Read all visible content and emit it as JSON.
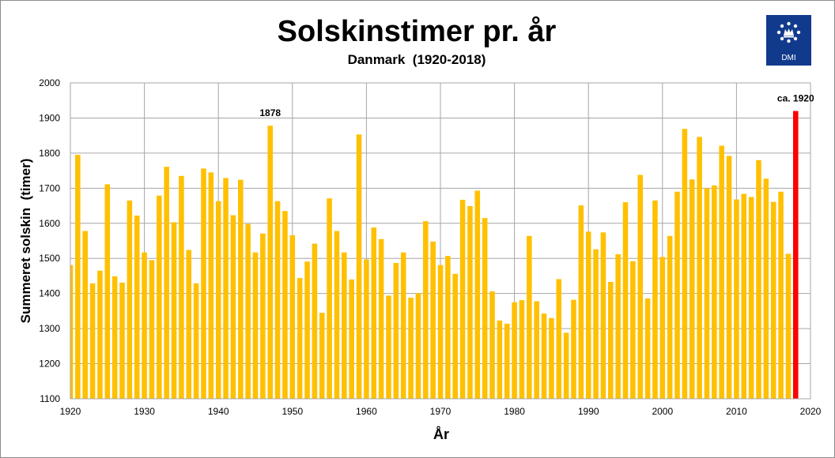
{
  "chart_data": {
    "type": "bar",
    "title": "Solskinstimer pr. år",
    "subtitle": "Danmark  (1920-2018)",
    "xlabel": "År",
    "ylabel": "Summeret solskin  (timer)",
    "xlim": [
      1920,
      2020
    ],
    "ylim": [
      1100,
      2000
    ],
    "x_ticks": [
      1920,
      1930,
      1940,
      1950,
      1960,
      1970,
      1980,
      1990,
      2000,
      2010,
      2020
    ],
    "y_ticks": [
      1100,
      1200,
      1300,
      1400,
      1500,
      1600,
      1700,
      1800,
      1900,
      2000
    ],
    "grid": true,
    "bar_color": "#ffc000",
    "highlight_color": "#ff0000",
    "x": [
      1920,
      1921,
      1922,
      1923,
      1924,
      1925,
      1926,
      1927,
      1928,
      1929,
      1930,
      1931,
      1932,
      1933,
      1934,
      1935,
      1936,
      1937,
      1938,
      1939,
      1940,
      1941,
      1942,
      1943,
      1944,
      1945,
      1946,
      1947,
      1948,
      1949,
      1950,
      1951,
      1952,
      1953,
      1954,
      1955,
      1956,
      1957,
      1958,
      1959,
      1960,
      1961,
      1962,
      1963,
      1964,
      1965,
      1966,
      1967,
      1968,
      1969,
      1970,
      1971,
      1972,
      1973,
      1974,
      1975,
      1976,
      1977,
      1978,
      1979,
      1980,
      1981,
      1982,
      1983,
      1984,
      1985,
      1986,
      1987,
      1988,
      1989,
      1990,
      1991,
      1992,
      1993,
      1994,
      1995,
      1996,
      1997,
      1998,
      1999,
      2000,
      2001,
      2002,
      2003,
      2004,
      2005,
      2006,
      2007,
      2008,
      2009,
      2010,
      2011,
      2012,
      2013,
      2014,
      2015,
      2016,
      2017,
      2018
    ],
    "values": [
      1481,
      1795,
      1578,
      1429,
      1465,
      1711,
      1449,
      1431,
      1665,
      1622,
      1517,
      1495,
      1679,
      1761,
      1603,
      1735,
      1524,
      1429,
      1756,
      1745,
      1663,
      1729,
      1623,
      1724,
      1598,
      1517,
      1571,
      1878,
      1663,
      1635,
      1566,
      1444,
      1491,
      1542,
      1345,
      1671,
      1578,
      1517,
      1440,
      1853,
      1497,
      1588,
      1555,
      1394,
      1487,
      1517,
      1388,
      1401,
      1606,
      1548,
      1481,
      1507,
      1456,
      1667,
      1649,
      1693,
      1615,
      1406,
      1323,
      1314,
      1375,
      1381,
      1564,
      1378,
      1343,
      1330,
      1441,
      1288,
      1382,
      1651,
      1576,
      1526,
      1574,
      1433,
      1512,
      1660,
      1492,
      1738,
      1386,
      1665,
      1504,
      1564,
      1690,
      1869,
      1725,
      1846,
      1700,
      1708,
      1821,
      1792,
      1668,
      1684,
      1675,
      1780,
      1727,
      1661,
      1690,
      1513,
      1920
    ],
    "highlight_index": 98,
    "annotations": [
      {
        "x": 1947,
        "text": "1878"
      },
      {
        "x": 2018,
        "text": "ca. 1920"
      }
    ]
  },
  "logo": {
    "label": "DMI",
    "bg_color": "#123a8c"
  }
}
